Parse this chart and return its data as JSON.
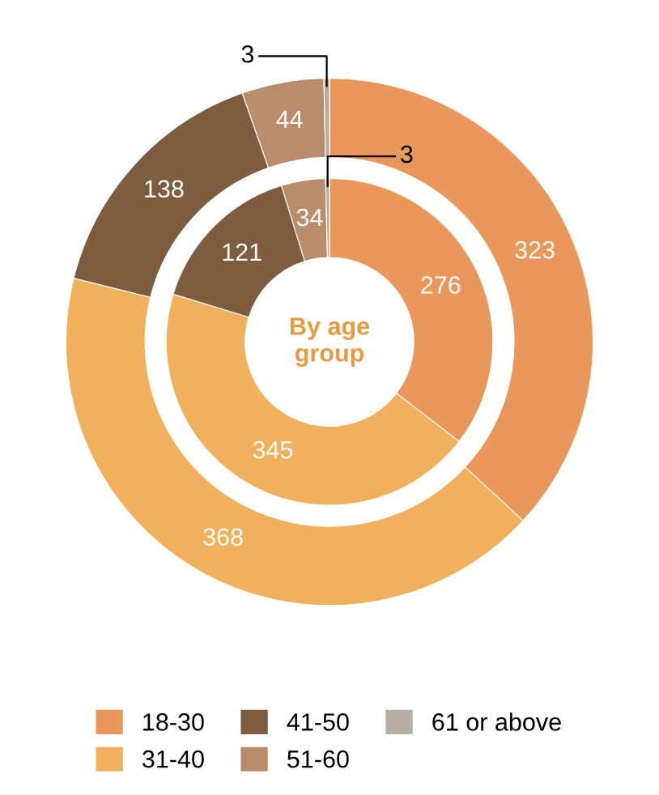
{
  "chart_data": {
    "type": "donut",
    "title": "By age group",
    "categories": [
      "18-30",
      "31-40",
      "41-50",
      "51-60",
      "61 or above"
    ],
    "colors": [
      "#e9975a",
      "#f0b05c",
      "#7d5c40",
      "#b98d6b",
      "#b7aea3"
    ],
    "series": [
      {
        "values": [
          276,
          345,
          121,
          34,
          3
        ]
      },
      {
        "values": [
          323,
          368,
          138,
          44,
          3
        ]
      }
    ],
    "data_labels": true,
    "legend": "bottom"
  }
}
